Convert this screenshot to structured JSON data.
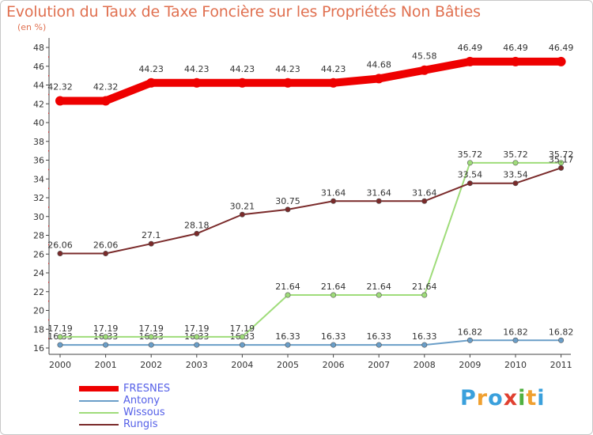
{
  "header": {
    "title": "Evolution du Taux de Taxe Foncière sur les Propriétés Non Bâties",
    "unit": "(en %)"
  },
  "chart_data": {
    "type": "line",
    "title": "Evolution du Taux de Taxe Foncière sur les Propriétés Non Bâties",
    "ylabel": "(en %)",
    "xlabel": "",
    "x": [
      "2000",
      "2001",
      "2002",
      "2003",
      "2004",
      "2005",
      "2006",
      "2007",
      "2008",
      "2009",
      "2010",
      "2011"
    ],
    "ylim": [
      15.5,
      48
    ],
    "yticks": [
      16,
      18,
      20,
      22,
      24,
      26,
      28,
      30,
      32,
      34,
      36,
      38,
      40,
      42,
      44,
      46,
      48
    ],
    "series": [
      {
        "name": "FRESNES",
        "color": "#ee0000",
        "values": [
          42.32,
          42.32,
          44.23,
          44.23,
          44.23,
          44.23,
          44.23,
          44.68,
          45.58,
          46.49,
          46.49,
          46.49
        ],
        "labels": [
          "42.32",
          "42.32",
          "44.23",
          "44.23",
          "44.23",
          "44.23",
          "44.23",
          "44.68",
          "45.58",
          "46.49",
          "46.49",
          "46.49"
        ]
      },
      {
        "name": "Antony",
        "color": "#6a9ec8",
        "values": [
          16.33,
          16.33,
          16.33,
          16.33,
          16.33,
          16.33,
          16.33,
          16.33,
          16.33,
          16.82,
          16.82,
          16.82
        ],
        "labels": [
          "16.33",
          "16.33",
          "16.33",
          "16.33",
          "16.33",
          "16.33",
          "16.33",
          "16.33",
          "16.33",
          "16.82",
          "16.82",
          "16.82"
        ]
      },
      {
        "name": "Wissous",
        "color": "#9fdc7a",
        "values": [
          17.19,
          17.19,
          17.19,
          17.19,
          17.19,
          21.64,
          21.64,
          21.64,
          21.64,
          35.72,
          35.72,
          35.72
        ],
        "labels": [
          "17.19",
          "17.19",
          "17.19",
          "17.19",
          "17.19",
          "21.64",
          "21.64",
          "21.64",
          "21.64",
          "35.72",
          "35.72",
          "35.72"
        ]
      },
      {
        "name": "Rungis",
        "color": "#7a2a2a",
        "values": [
          26.06,
          26.06,
          27.1,
          28.18,
          30.21,
          30.75,
          31.64,
          31.64,
          31.64,
          33.54,
          33.54,
          35.17
        ],
        "labels": [
          "26.06",
          "26.06",
          "27.1",
          "28.18",
          "30.21",
          "30.75",
          "31.64",
          "31.64",
          "31.64",
          "33.54",
          "33.54",
          "35.17"
        ]
      }
    ],
    "legend": "bottom-left",
    "grid": false
  },
  "logo": {
    "text": "Proxiti",
    "letters": [
      "P",
      "r",
      "o",
      "x",
      "i",
      "t",
      "i"
    ],
    "colors": [
      "#3aa0dc",
      "#f0a030",
      "#3aa0dc",
      "#e04030",
      "#50b040",
      "#f0a030",
      "#3aa0dc"
    ]
  }
}
